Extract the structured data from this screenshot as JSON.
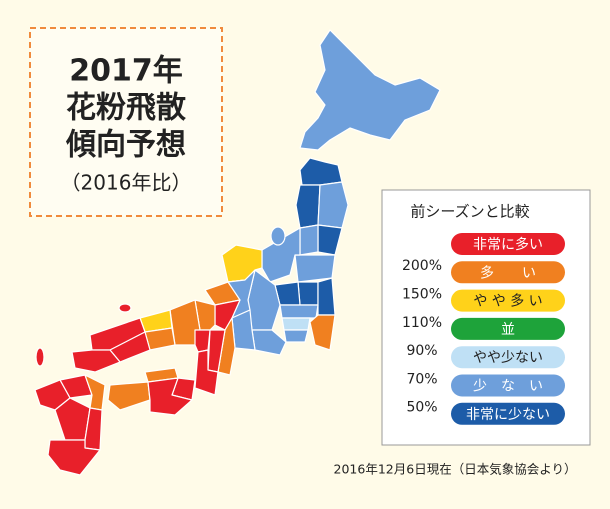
{
  "title_box": {
    "lines": [
      "2017年",
      "花粉飛散",
      "傾向予想",
      "（2016年比）"
    ]
  },
  "legend": {
    "title": "前シーズンと比較",
    "items": [
      {
        "label": "非常に多い",
        "color": "#e8202a"
      },
      {
        "label": "多　　い",
        "color": "#f08020"
      },
      {
        "label": "や や 多 い",
        "color": "#ffd21a"
      },
      {
        "label": "並",
        "color": "#1ea33a"
      },
      {
        "label": "やや少ない",
        "color": "#bfe0f5"
      },
      {
        "label": "少　な　い",
        "color": "#6e9fdb"
      },
      {
        "label": "非常に少ない",
        "color": "#1d5ca8"
      }
    ],
    "thresholds": [
      "200%",
      "150%",
      "110%",
      "90%",
      "70%",
      "50%"
    ]
  },
  "footer": "2016年12月6日現在（日本気象協会より）"
}
